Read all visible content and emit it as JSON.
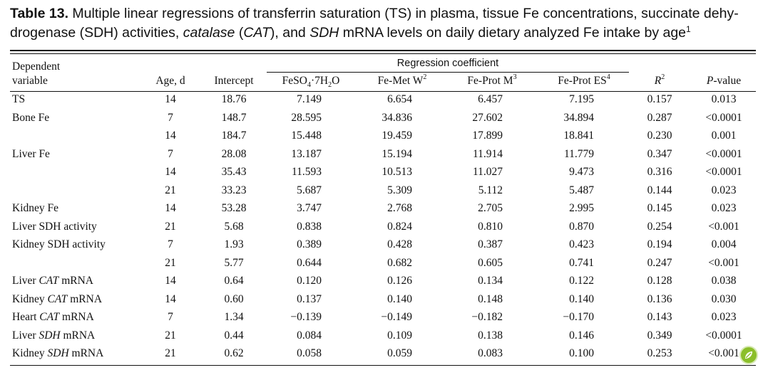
{
  "caption": {
    "label": "Table 13.",
    "p1": " Multiple linear regressions of transferrin saturation (TS) in plasma, tissue Fe concentrations, succinate dehy-drogenase (SDH) activities, ",
    "cat1": "catalase",
    "p2": " (",
    "cat2": "CAT",
    "p3": "), and ",
    "sdh": "SDH",
    "p4": " mRNA levels on daily dietary analyzed Fe intake by age",
    "sup": "1"
  },
  "header": {
    "group": "Regression coefficient",
    "dep1": "Dependent",
    "dep2": "variable",
    "age": "Age, d",
    "intercept": "Intercept",
    "feso4_a": "FeSO",
    "feso4_s1": "4",
    "feso4_b": "·7H",
    "feso4_s2": "2",
    "feso4_c": "O",
    "femet": "Fe-Met W",
    "femet_sup": "2",
    "feprotm": "Fe-Prot M",
    "feprotm_sup": "3",
    "feprotes": "Fe-Prot ES",
    "feprotes_sup": "4",
    "r2": "R",
    "r2_sup": "2",
    "p_italic": "P",
    "p_rest": "-value"
  },
  "rows": [
    {
      "a": "TS",
      "b": "",
      "c": "",
      "age": "14",
      "int": "18.76",
      "v1": "7.149",
      "v2": "6.654",
      "v3": "6.457",
      "v4": "7.195",
      "r2": "0.157",
      "p": "0.013"
    },
    {
      "a": "Bone Fe",
      "b": "",
      "c": "",
      "age": "7",
      "int": "148.7",
      "v1": "28.595",
      "v2": "34.836",
      "v3": "27.602",
      "v4": "34.894",
      "r2": "0.287",
      "p": "<0.0001"
    },
    {
      "a": "",
      "b": "",
      "c": "",
      "age": "14",
      "int": "184.7",
      "v1": "15.448",
      "v2": "19.459",
      "v3": "17.899",
      "v4": "18.841",
      "r2": "0.230",
      "p": "0.001"
    },
    {
      "a": "Liver Fe",
      "b": "",
      "c": "",
      "age": "7",
      "int": "28.08",
      "v1": "13.187",
      "v2": "15.194",
      "v3": "11.914",
      "v4": "11.779",
      "r2": "0.347",
      "p": "<0.0001"
    },
    {
      "a": "",
      "b": "",
      "c": "",
      "age": "14",
      "int": "35.43",
      "v1": "11.593",
      "v2": "10.513",
      "v3": "11.027",
      "v4": "9.473",
      "r2": "0.316",
      "p": "<0.0001"
    },
    {
      "a": "",
      "b": "",
      "c": "",
      "age": "21",
      "int": "33.23",
      "v1": "5.687",
      "v2": "5.309",
      "v3": "5.112",
      "v4": "5.487",
      "r2": "0.144",
      "p": "0.023"
    },
    {
      "a": "Kidney Fe",
      "b": "",
      "c": "",
      "age": "14",
      "int": "53.28",
      "v1": "3.747",
      "v2": "2.768",
      "v3": "2.705",
      "v4": "2.995",
      "r2": "0.145",
      "p": "0.023"
    },
    {
      "a": "Liver SDH activity",
      "b": "",
      "c": "",
      "age": "21",
      "int": "5.68",
      "v1": "0.838",
      "v2": "0.824",
      "v3": "0.810",
      "v4": "0.870",
      "r2": "0.254",
      "p": "<0.001"
    },
    {
      "a": "Kidney SDH activity",
      "b": "",
      "c": "",
      "age": "7",
      "int": "1.93",
      "v1": "0.389",
      "v2": "0.428",
      "v3": "0.387",
      "v4": "0.423",
      "r2": "0.194",
      "p": "0.004"
    },
    {
      "a": "",
      "b": "",
      "c": "",
      "age": "21",
      "int": "5.77",
      "v1": "0.644",
      "v2": "0.682",
      "v3": "0.605",
      "v4": "0.741",
      "r2": "0.247",
      "p": "<0.001"
    },
    {
      "a": "Liver ",
      "b": "CAT",
      "c": " mRNA",
      "age": "14",
      "int": "0.64",
      "v1": "0.120",
      "v2": "0.126",
      "v3": "0.134",
      "v4": "0.122",
      "r2": "0.128",
      "p": "0.038"
    },
    {
      "a": "Kidney ",
      "b": "CAT",
      "c": " mRNA",
      "age": "14",
      "int": "0.60",
      "v1": "0.137",
      "v2": "0.140",
      "v3": "0.148",
      "v4": "0.140",
      "r2": "0.136",
      "p": "0.030"
    },
    {
      "a": "Heart ",
      "b": "CAT",
      "c": " mRNA",
      "age": "7",
      "int": "1.34",
      "v1": "−0.139",
      "v2": "−0.149",
      "v3": "−0.182",
      "v4": "−0.170",
      "r2": "0.143",
      "p": "0.023"
    },
    {
      "a": "Liver ",
      "b": "SDH",
      "c": " mRNA",
      "age": "21",
      "int": "0.44",
      "v1": "0.084",
      "v2": "0.109",
      "v3": "0.138",
      "v4": "0.146",
      "r2": "0.349",
      "p": "<0.0001"
    },
    {
      "a": "Kidney ",
      "b": "SDH",
      "c": " mRNA",
      "age": "21",
      "int": "0.62",
      "v1": "0.058",
      "v2": "0.059",
      "v3": "0.083",
      "v4": "0.100",
      "r2": "0.253",
      "p": "<0.001"
    }
  ],
  "colors": {
    "text": "#111111",
    "logo": "#8bbf2a"
  },
  "icons": {
    "watermark": "leaf-logo-icon"
  }
}
